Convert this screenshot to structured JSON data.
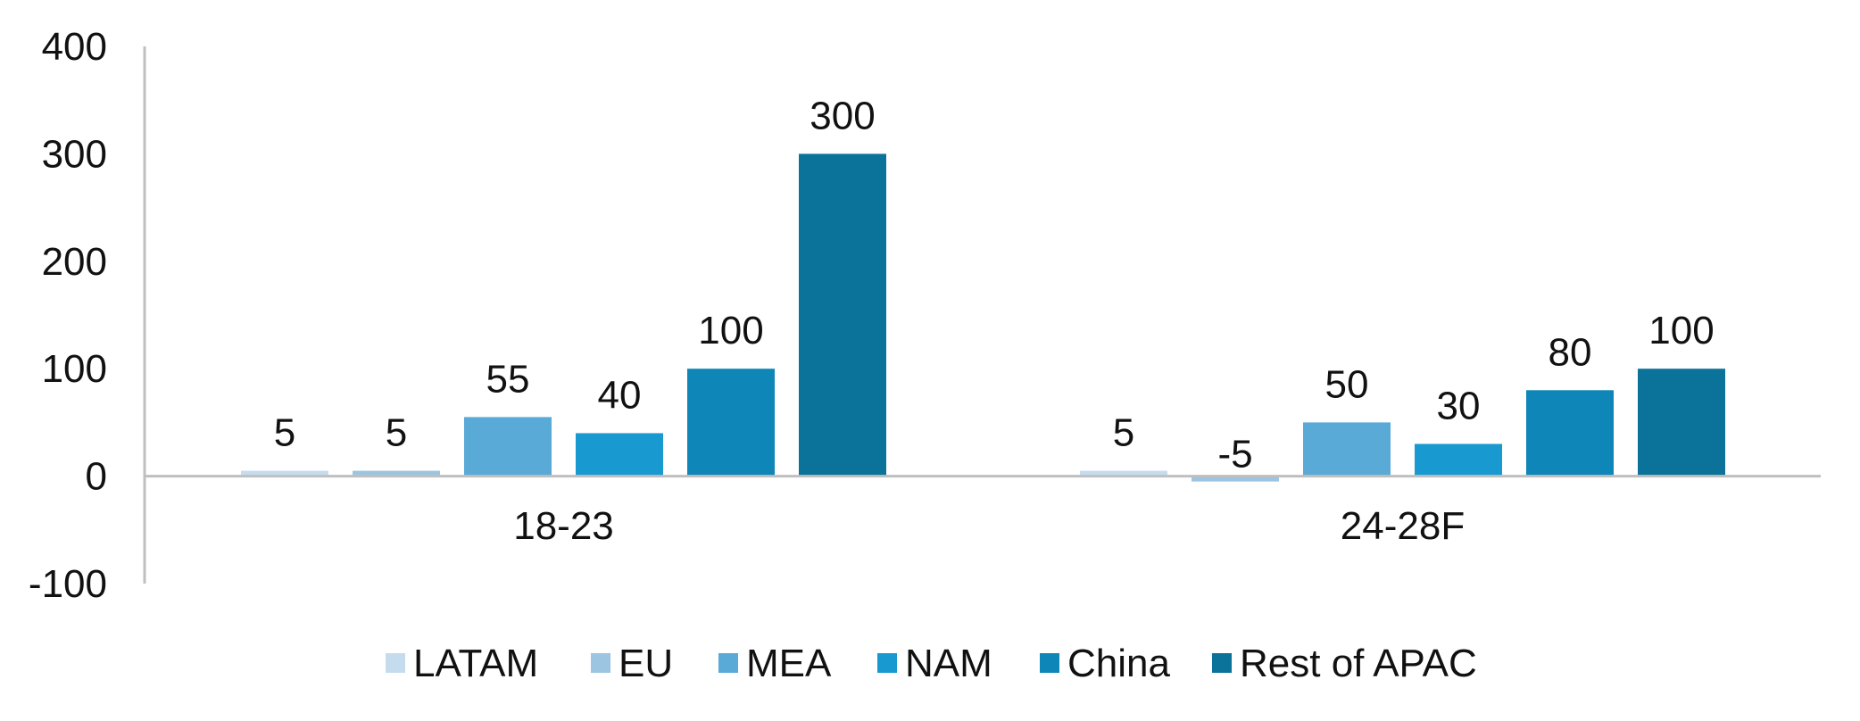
{
  "chart_data": {
    "type": "bar",
    "categories": [
      "18-23",
      "24-28F"
    ],
    "series": [
      {
        "name": "LATAM",
        "color": "#c5dcef",
        "values": [
          5,
          5
        ]
      },
      {
        "name": "EU",
        "color": "#9cc5e1",
        "values": [
          5,
          -5
        ]
      },
      {
        "name": "MEA",
        "color": "#5aaad8",
        "values": [
          55,
          50
        ]
      },
      {
        "name": "NAM",
        "color": "#1899cf",
        "values": [
          40,
          30
        ]
      },
      {
        "name": "China",
        "color": "#0e86b8",
        "values": [
          100,
          80
        ]
      },
      {
        "name": "Rest of APAC",
        "color": "#0b7299",
        "values": [
          300,
          100
        ]
      }
    ],
    "ylim": [
      -100,
      400
    ],
    "yticks": [
      400,
      300,
      200,
      100,
      0,
      -100
    ],
    "title": "",
    "xlabel": "",
    "ylabel": "",
    "grid": false,
    "legend_position": "bottom",
    "data_labels": true,
    "axis_color": "#bfbfbf"
  }
}
